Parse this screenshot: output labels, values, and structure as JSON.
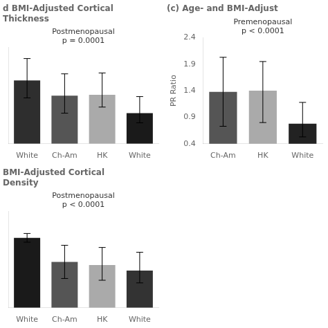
{
  "chart_data": [
    {
      "type": "bar",
      "title": [
        "d BMI-Adjusted Cortical",
        "Thickness"
      ],
      "annotation": [
        "Postmenopausal",
        "p = 0.0001"
      ],
      "categories": [
        "White",
        "Ch-Am",
        "HK",
        "White"
      ],
      "values": [
        1.45,
        1.1,
        1.12,
        0.7
      ],
      "errors_low": [
        0.4,
        0.4,
        0.28,
        0.22
      ],
      "errors_high": [
        0.5,
        0.5,
        0.5,
        0.38
      ],
      "colors": [
        "#2e2e2e",
        "#555555",
        "#aaaaaa",
        "#1a1a1a"
      ],
      "ylim": [
        0,
        2.2
      ],
      "grid": false,
      "tick_labels": "x"
    },
    {
      "type": "bar",
      "title": [
        "BMI-Adjusted Cortical",
        "Density"
      ],
      "annotation": [
        "Postmenopausal",
        "p < 0.0001"
      ],
      "categories": [
        "White",
        "Ch-Am",
        "HK",
        "White"
      ],
      "values": [
        1.6,
        1.05,
        0.98,
        0.85
      ],
      "errors_low": [
        0.1,
        0.38,
        0.35,
        0.28
      ],
      "errors_high": [
        0.1,
        0.38,
        0.4,
        0.42
      ],
      "colors": [
        "#1a1a1a",
        "#555555",
        "#aaaaaa",
        "#333333"
      ],
      "ylim": [
        0,
        2.2
      ],
      "grid": false,
      "tick_labels": "x"
    },
    {
      "type": "bar",
      "panel_label": "(c)",
      "title": "Age- and BMI-Adjust",
      "annotation": [
        "Premenopausal",
        "p < 0.0001"
      ],
      "ylabel": "PR Ratio",
      "categories": [
        "Ch-Am",
        "HK",
        "White"
      ],
      "values": [
        1.38,
        1.4,
        0.78
      ],
      "errors_low": [
        0.65,
        0.6,
        0.25
      ],
      "errors_high": [
        0.65,
        0.55,
        0.4
      ],
      "colors": [
        "#555555",
        "#aaaaaa",
        "#222222"
      ],
      "ylim": [
        0.4,
        2.4
      ],
      "yticks": [
        0.4,
        0.9,
        1.4,
        1.9,
        2.4
      ],
      "grid": false
    }
  ]
}
